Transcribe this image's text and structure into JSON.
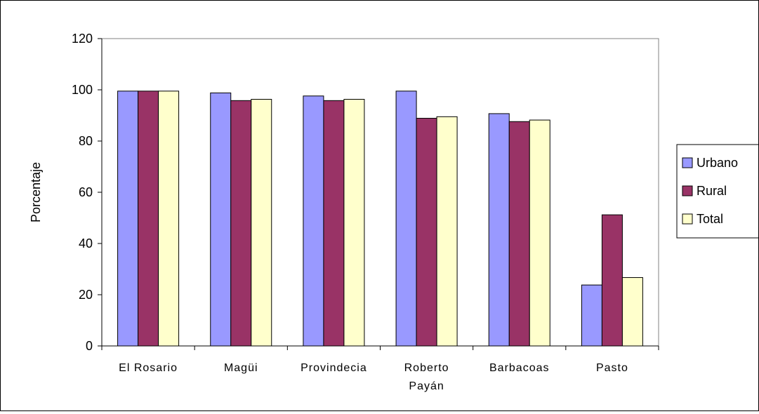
{
  "chart_data": {
    "type": "bar",
    "title": "",
    "xlabel": "",
    "ylabel": "Porcentaje",
    "ylim": [
      0,
      120
    ],
    "yticks": [
      0,
      20,
      40,
      60,
      80,
      100,
      120
    ],
    "grid": false,
    "legend_position": "right",
    "categories": [
      [
        "El Rosario"
      ],
      [
        "Magüi"
      ],
      [
        "Provindecia"
      ],
      [
        "Roberto",
        "Payán"
      ],
      [
        "Barbacoas"
      ],
      [
        "Pasto"
      ]
    ],
    "series": [
      {
        "name": "Urbano",
        "color": "#9999FF",
        "values": [
          99.5,
          98.8,
          97.6,
          99.5,
          90.7,
          23.8
        ]
      },
      {
        "name": "Rural",
        "color": "#993366",
        "values": [
          99.5,
          95.8,
          95.8,
          88.9,
          87.6,
          51.2
        ]
      },
      {
        "name": "Total",
        "color": "#FFFFCC",
        "values": [
          99.5,
          96.3,
          96.3,
          89.5,
          88.2,
          26.7
        ]
      }
    ]
  }
}
